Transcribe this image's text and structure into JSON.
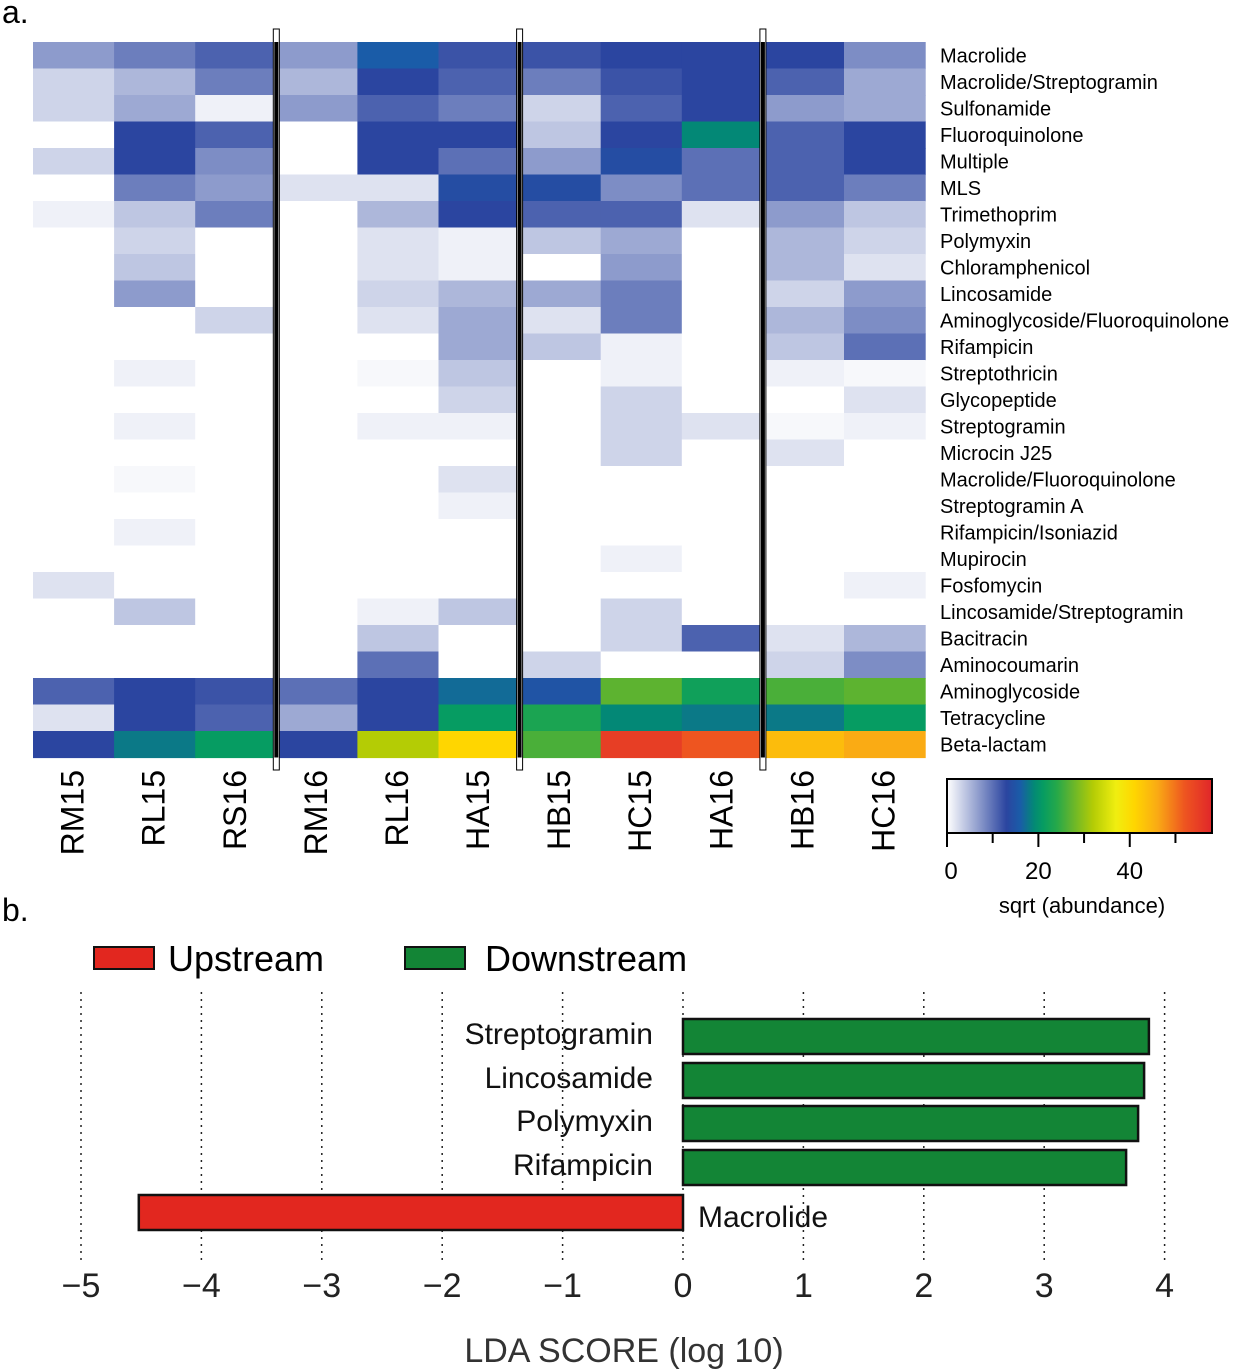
{
  "chart_data": [
    {
      "type": "heatmap",
      "panel_label": "a.",
      "columns": [
        "RM15",
        "RL15",
        "RS16",
        "RM16",
        "RL16",
        "HA15",
        "HB15",
        "HC15",
        "HA16",
        "HB16",
        "HC16"
      ],
      "rows": [
        "Macrolide",
        "Macrolide/Streptogramin",
        "Sulfonamide",
        "Fluoroquinolone",
        "Multiple",
        "MLS",
        "Trimethoprim",
        "Polymyxin",
        "Chloramphenicol",
        "Lincosamide",
        "Aminoglycoside/Fluoroquinolone",
        "Rifampicin",
        "Streptothricin",
        "Glycopeptide",
        "Streptogramin",
        "Microcin J25",
        "Macrolide/Fluoroquinolone",
        "Streptogramin A",
        "Rifampicin/Isoniazid",
        "Mupirocin",
        "Fosfomycin",
        "Lincosamide/Streptogramin",
        "Bacitracin",
        "Aminocoumarin",
        "Aminoglycoside",
        "Tetracycline",
        "Beta-lactam"
      ],
      "values": [
        [
          7,
          9,
          11,
          7,
          16,
          12,
          12,
          13,
          13,
          13,
          8
        ],
        [
          3,
          5,
          9,
          5,
          13,
          11,
          9,
          12,
          13,
          11,
          6
        ],
        [
          3,
          6,
          1,
          7,
          11,
          9,
          3,
          11,
          13,
          7,
          6
        ],
        [
          0,
          13,
          11,
          0,
          13,
          13,
          4,
          13,
          19,
          11,
          13
        ],
        [
          3,
          13,
          8,
          0,
          13,
          10,
          7,
          14,
          10,
          11,
          13
        ],
        [
          0,
          9,
          7,
          2,
          2,
          14,
          14,
          8,
          10,
          11,
          9
        ],
        [
          1,
          4,
          9,
          0,
          5,
          13,
          11,
          11,
          2,
          7,
          4
        ],
        [
          0,
          3,
          0,
          0,
          2,
          1,
          4,
          6,
          0,
          5,
          3
        ],
        [
          0,
          4,
          0,
          0,
          2,
          1,
          0,
          7,
          0,
          5,
          2
        ],
        [
          0,
          7,
          0,
          0,
          3,
          5,
          6,
          9,
          0,
          3,
          7
        ],
        [
          0,
          0,
          3,
          0,
          2,
          6,
          2,
          9,
          0,
          5,
          8
        ],
        [
          0,
          0,
          0,
          0,
          0,
          6,
          4,
          1,
          0,
          4,
          10
        ],
        [
          0,
          1,
          0,
          0,
          0.5,
          4,
          0,
          1,
          0,
          1,
          0.5
        ],
        [
          0,
          0,
          0,
          0,
          0,
          3,
          0,
          3,
          0,
          0,
          2
        ],
        [
          0,
          1,
          0,
          0,
          1,
          1,
          0,
          3,
          2,
          0.5,
          1
        ],
        [
          0,
          0,
          0,
          0,
          0,
          0,
          0,
          3,
          0,
          2,
          0
        ],
        [
          0,
          0.5,
          0,
          0,
          0,
          2,
          0,
          0,
          0,
          0,
          0
        ],
        [
          0,
          0,
          0,
          0,
          0,
          1,
          0,
          0,
          0,
          0,
          0
        ],
        [
          0,
          1,
          0,
          0,
          0,
          0,
          0,
          0,
          0,
          0,
          0
        ],
        [
          0,
          0,
          0,
          0,
          0,
          0,
          0,
          1,
          0,
          0,
          0
        ],
        [
          2,
          0,
          0,
          0,
          0,
          0,
          0,
          0,
          0,
          0,
          1
        ],
        [
          0,
          4,
          0,
          0,
          1,
          4,
          0,
          3,
          0,
          0,
          0
        ],
        [
          0,
          0,
          0,
          0,
          4,
          0,
          0,
          3,
          11,
          2,
          5
        ],
        [
          0,
          0,
          0,
          0,
          10,
          0,
          3,
          0,
          0,
          3,
          8
        ],
        [
          11,
          13,
          12,
          10,
          13,
          17,
          15,
          27,
          22,
          26,
          27
        ],
        [
          2,
          13,
          11,
          6,
          13,
          21,
          23,
          19,
          18,
          18,
          21
        ],
        [
          13,
          18,
          21,
          13,
          32,
          41,
          26,
          55,
          52,
          44,
          46
        ]
      ],
      "group_separators_after_column": [
        2,
        5,
        8
      ],
      "colorbar": {
        "label": "sqrt (abundance)",
        "range": [
          0,
          58
        ],
        "ticks": [
          0,
          20,
          40
        ],
        "minor_ticks": [
          10,
          30,
          50
        ],
        "colors": [
          {
            "v": 0,
            "c": "#ffffff"
          },
          {
            "v": 13,
            "c": "#2b45a0"
          },
          {
            "v": 16,
            "c": "#1a5ca8"
          },
          {
            "v": 19,
            "c": "#038876"
          },
          {
            "v": 21,
            "c": "#069c62"
          },
          {
            "v": 24,
            "c": "#25a84a"
          },
          {
            "v": 27,
            "c": "#5db330"
          },
          {
            "v": 32,
            "c": "#b4cc05"
          },
          {
            "v": 37,
            "c": "#f0ee10"
          },
          {
            "v": 41,
            "c": "#ffd600"
          },
          {
            "v": 46,
            "c": "#faab14"
          },
          {
            "v": 52,
            "c": "#ee5520"
          },
          {
            "v": 58,
            "c": "#e0262a"
          }
        ]
      }
    },
    {
      "type": "bar",
      "orientation": "horizontal",
      "panel_label": "b.",
      "categories": [
        "Streptogramin",
        "Lincosamide",
        "Polymyxin",
        "Rifampicin",
        "Macrolide"
      ],
      "values": [
        3.87,
        3.83,
        3.78,
        3.68,
        -4.52
      ],
      "groups": [
        "Downstream",
        "Downstream",
        "Downstream",
        "Downstream",
        "Upstream"
      ],
      "legend": [
        {
          "name": "Upstream",
          "color": "#e2271f"
        },
        {
          "name": "Downstream",
          "color": "#138536"
        }
      ],
      "xlabel": "LDA SCORE (log 10)",
      "xlim": [
        -5,
        4
      ],
      "xticks": [
        "−5",
        "−4",
        "−3",
        "−2",
        "−1",
        "0",
        "1",
        "2",
        "3",
        "4"
      ],
      "grid": "vertical dotted"
    }
  ]
}
